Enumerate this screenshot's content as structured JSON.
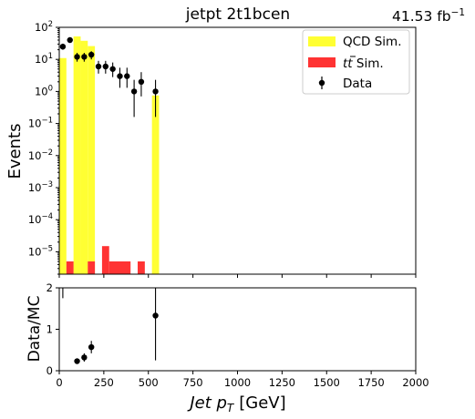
{
  "chart_data": {
    "type": "bar",
    "title": "jetpt  2t1bcen",
    "lumi_text": "41.53 fb",
    "lumi_sup": "−1",
    "xlabel": "Jet p",
    "xlabel_sub": "T",
    "xlabel_unit": "[GeV]",
    "top_panel": {
      "ylabel": "Events",
      "yscale": "log",
      "ylim": [
        2e-06,
        100
      ],
      "y_ticks": [
        {
          "base": "10",
          "exp": "2",
          "value": 100
        },
        {
          "base": "10",
          "exp": "1",
          "value": 10
        },
        {
          "base": "10",
          "exp": "0",
          "value": 1
        },
        {
          "base": "10",
          "exp": "−1",
          "value": 0.1
        },
        {
          "base": "10",
          "exp": "−2",
          "value": 0.01
        },
        {
          "base": "10",
          "exp": "−3",
          "value": 0.001
        },
        {
          "base": "10",
          "exp": "−4",
          "value": 0.0001
        },
        {
          "base": "10",
          "exp": "−5",
          "value": 1e-05
        }
      ],
      "legend": {
        "placement": "top-right",
        "entries": [
          {
            "label": "QCD Sim.",
            "color": "#ffff33",
            "kind": "box"
          },
          {
            "label_main": "t",
            "label_bar": "t",
            "label_rest": " Sim.",
            "color": "#ff3333",
            "kind": "box"
          },
          {
            "label": "Data",
            "color": "#000000",
            "kind": "errorbar"
          }
        ]
      },
      "qcd": [
        {
          "x0": 0,
          "x1": 40,
          "y": 11
        },
        {
          "x0": 80,
          "x1": 120,
          "y": 52
        },
        {
          "x0": 120,
          "x1": 160,
          "y": 38
        },
        {
          "x0": 160,
          "x1": 200,
          "y": 26
        },
        {
          "x0": 520,
          "x1": 560,
          "y": 0.75
        }
      ],
      "ttbar": [
        {
          "x0": 40,
          "x1": 80,
          "y": 5e-06
        },
        {
          "x0": 160,
          "x1": 200,
          "y": 5e-06
        },
        {
          "x0": 240,
          "x1": 280,
          "y": 1.5e-05
        },
        {
          "x0": 280,
          "x1": 400,
          "y": 5e-06
        },
        {
          "x0": 440,
          "x1": 480,
          "y": 5e-06
        }
      ],
      "data_points": [
        {
          "x": 20,
          "y": 25,
          "lo": 20,
          "hi": 31
        },
        {
          "x": 60,
          "y": 40,
          "lo": 33,
          "hi": 47
        },
        {
          "x": 100,
          "y": 12,
          "lo": 8.5,
          "hi": 16
        },
        {
          "x": 140,
          "y": 12,
          "lo": 8.5,
          "hi": 16
        },
        {
          "x": 180,
          "y": 14,
          "lo": 10,
          "hi": 18
        },
        {
          "x": 220,
          "y": 6,
          "lo": 3.6,
          "hi": 9
        },
        {
          "x": 260,
          "y": 6,
          "lo": 3.6,
          "hi": 9
        },
        {
          "x": 300,
          "y": 5,
          "lo": 2.8,
          "hi": 8
        },
        {
          "x": 340,
          "y": 3,
          "lo": 1.3,
          "hi": 5.5
        },
        {
          "x": 380,
          "y": 3,
          "lo": 1.3,
          "hi": 5.5
        },
        {
          "x": 420,
          "y": 1,
          "lo": 0.16,
          "hi": 2.3
        },
        {
          "x": 460,
          "y": 2,
          "lo": 0.7,
          "hi": 4
        },
        {
          "x": 540,
          "y": 1,
          "lo": 0.16,
          "hi": 2.3
        }
      ]
    },
    "bottom_panel": {
      "ylabel": "Data/MC",
      "ylim": [
        0,
        2
      ],
      "y_ticks": [
        "0",
        "1",
        "2"
      ],
      "ratio_points": [
        {
          "x": 20,
          "y": 2.3,
          "lo": 1.75,
          "hi": 2.9
        },
        {
          "x": 100,
          "y": 0.23,
          "lo": 0.17,
          "hi": 0.3
        },
        {
          "x": 140,
          "y": 0.32,
          "lo": 0.22,
          "hi": 0.42
        },
        {
          "x": 180,
          "y": 0.57,
          "lo": 0.42,
          "hi": 0.72
        },
        {
          "x": 540,
          "y": 1.33,
          "lo": 0.25,
          "hi": 2.05
        }
      ]
    },
    "x_axis": {
      "xlim": [
        0,
        2000
      ],
      "ticks": [
        "0",
        "250",
        "500",
        "750",
        "1000",
        "1250",
        "1500",
        "1750",
        "2000"
      ]
    }
  }
}
